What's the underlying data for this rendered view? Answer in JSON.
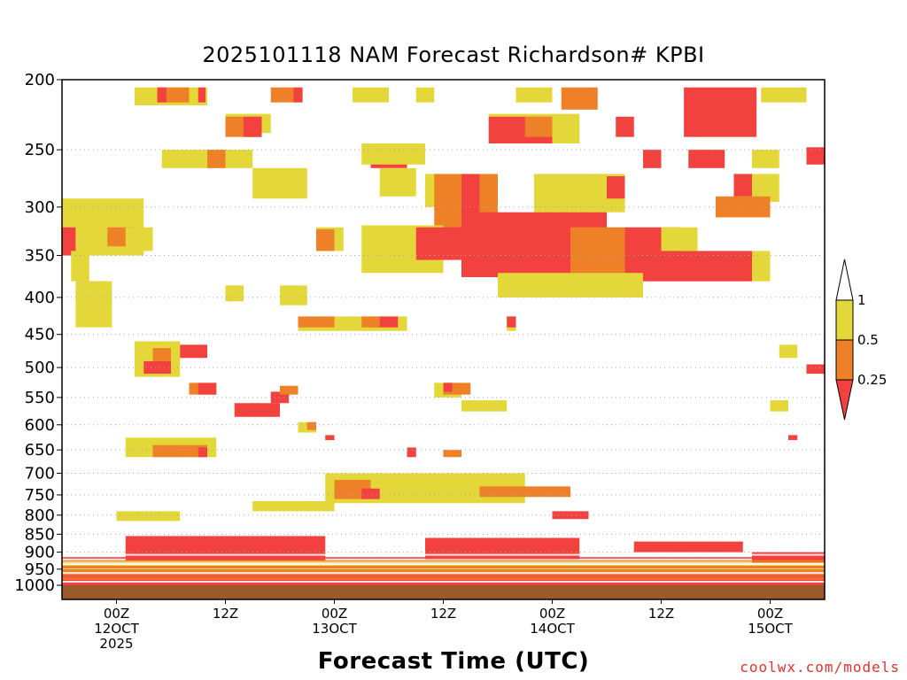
{
  "chart_data": {
    "type": "heatmap",
    "title": "2025101118 NAM Forecast Richardson# KPBI",
    "xlabel": "Forecast Time (UTC)",
    "ylabel": "",
    "y_scale": "log",
    "y_inverted": true,
    "y_ticks": [
      200,
      250,
      300,
      350,
      400,
      450,
      500,
      550,
      600,
      650,
      700,
      750,
      800,
      850,
      900,
      950,
      1000
    ],
    "x_ticks": [
      {
        "line1": "00Z",
        "line2": "12OCT",
        "line3": "2025"
      },
      {
        "line1": "12Z",
        "line2": "",
        "line3": ""
      },
      {
        "line1": "00Z",
        "line2": "13OCT",
        "line3": ""
      },
      {
        "line1": "12Z",
        "line2": "",
        "line3": ""
      },
      {
        "line1": "00Z",
        "line2": "14OCT",
        "line3": ""
      },
      {
        "line1": "12Z",
        "line2": "",
        "line3": ""
      },
      {
        "line1": "00Z",
        "line2": "15OCT",
        "line3": ""
      }
    ],
    "x_tick_hours": [
      6,
      18,
      30,
      42,
      54,
      66,
      78
    ],
    "x_range_hours": [
      0,
      84
    ],
    "grid": "dotted at pressure ticks",
    "colorbar": {
      "labels": [
        "1",
        "0.5",
        "0.25"
      ],
      "colors": {
        "above1": "#ffffff",
        "between_0.5_1": "#e3d73a",
        "between_0.25_0.5": "#ee8127",
        "below_0.25": "#f2423f"
      }
    },
    "ground_color": "#9a5a2c",
    "regions": [
      {
        "c": "Y",
        "h": [
          8,
          16
        ],
        "p": [
          205,
          217
        ]
      },
      {
        "c": "O",
        "h": [
          10.5,
          14
        ],
        "p": [
          205,
          215
        ]
      },
      {
        "c": "R",
        "h": [
          10.5,
          11.5
        ],
        "p": [
          205,
          215
        ]
      },
      {
        "c": "R",
        "h": [
          15,
          15.8
        ],
        "p": [
          205,
          215
        ]
      },
      {
        "c": "O",
        "h": [
          23,
          26
        ],
        "p": [
          205,
          215
        ]
      },
      {
        "c": "R",
        "h": [
          25.5,
          26.5
        ],
        "p": [
          205,
          215
        ]
      },
      {
        "c": "Y",
        "h": [
          32,
          36
        ],
        "p": [
          205,
          215
        ]
      },
      {
        "c": "Y",
        "h": [
          39,
          41
        ],
        "p": [
          205,
          215
        ]
      },
      {
        "c": "Y",
        "h": [
          50,
          54
        ],
        "p": [
          205,
          215
        ]
      },
      {
        "c": "O",
        "h": [
          55,
          59
        ],
        "p": [
          205,
          220
        ]
      },
      {
        "c": "R",
        "h": [
          68.5,
          76.5
        ],
        "p": [
          205,
          240
        ]
      },
      {
        "c": "Y",
        "h": [
          77,
          82
        ],
        "p": [
          205,
          215
        ]
      },
      {
        "c": "Y",
        "h": [
          18,
          23
        ],
        "p": [
          223,
          237
        ]
      },
      {
        "c": "O",
        "h": [
          18,
          22
        ],
        "p": [
          225,
          240
        ]
      },
      {
        "c": "R",
        "h": [
          20,
          22
        ],
        "p": [
          225,
          240
        ]
      },
      {
        "c": "Y",
        "h": [
          47,
          57
        ],
        "p": [
          223,
          245
        ]
      },
      {
        "c": "R",
        "h": [
          47,
          54
        ],
        "p": [
          225,
          245
        ]
      },
      {
        "c": "O",
        "h": [
          51,
          54
        ],
        "p": [
          225,
          240
        ]
      },
      {
        "c": "R",
        "h": [
          61,
          63
        ],
        "p": [
          225,
          240
        ]
      },
      {
        "c": "Y",
        "h": [
          11,
          21
        ],
        "p": [
          250,
          265
        ]
      },
      {
        "c": "O",
        "h": [
          16,
          18
        ],
        "p": [
          250,
          265
        ]
      },
      {
        "c": "R",
        "h": [
          34,
          38
        ],
        "p": [
          245,
          265
        ]
      },
      {
        "c": "Y",
        "h": [
          33,
          40
        ],
        "p": [
          245,
          262
        ]
      },
      {
        "c": "R",
        "h": [
          64,
          66
        ],
        "p": [
          250,
          265
        ]
      },
      {
        "c": "R",
        "h": [
          69,
          73
        ],
        "p": [
          250,
          265
        ]
      },
      {
        "c": "Y",
        "h": [
          76,
          79
        ],
        "p": [
          250,
          265
        ]
      },
      {
        "c": "R",
        "h": [
          82,
          84
        ],
        "p": [
          248,
          262
        ]
      },
      {
        "c": "Y",
        "h": [
          21,
          27
        ],
        "p": [
          265,
          292
        ]
      },
      {
        "c": "Y",
        "h": [
          35,
          39
        ],
        "p": [
          265,
          290
        ]
      },
      {
        "c": "Y",
        "h": [
          40,
          43
        ],
        "p": [
          270,
          300
        ]
      },
      {
        "c": "O",
        "h": [
          41,
          48
        ],
        "p": [
          270,
          345
        ]
      },
      {
        "c": "R",
        "h": [
          44,
          46
        ],
        "p": [
          270,
          345
        ]
      },
      {
        "c": "O",
        "h": [
          52,
          60
        ],
        "p": [
          270,
          290
        ]
      },
      {
        "c": "Y",
        "h": [
          52,
          62
        ],
        "p": [
          270,
          305
        ]
      },
      {
        "c": "R",
        "h": [
          60,
          62
        ],
        "p": [
          272,
          292
        ]
      },
      {
        "c": "Y",
        "h": [
          74,
          79
        ],
        "p": [
          270,
          295
        ]
      },
      {
        "c": "R",
        "h": [
          74,
          76
        ],
        "p": [
          270,
          290
        ]
      },
      {
        "c": "O",
        "h": [
          72,
          78
        ],
        "p": [
          290,
          310
        ]
      },
      {
        "c": "Y",
        "h": [
          0,
          9
        ],
        "p": [
          292,
          350
        ]
      },
      {
        "c": "O",
        "h": [
          5,
          8
        ],
        "p": [
          320,
          340
        ]
      },
      {
        "c": "R",
        "h": [
          0,
          1.5
        ],
        "p": [
          320,
          350
        ]
      },
      {
        "c": "Y",
        "h": [
          7,
          10
        ],
        "p": [
          320,
          345
        ]
      },
      {
        "c": "Y",
        "h": [
          28,
          31
        ],
        "p": [
          320,
          345
        ]
      },
      {
        "c": "O",
        "h": [
          28,
          30
        ],
        "p": [
          322,
          345
        ]
      },
      {
        "c": "Y",
        "h": [
          33,
          42
        ],
        "p": [
          318,
          370
        ]
      },
      {
        "c": "R",
        "h": [
          39,
          44
        ],
        "p": [
          320,
          355
        ]
      },
      {
        "c": "R",
        "h": [
          44,
          60
        ],
        "p": [
          305,
          375
        ]
      },
      {
        "c": "R",
        "h": [
          50,
          58
        ],
        "p": [
          320,
          380
        ]
      },
      {
        "c": "O",
        "h": [
          56,
          62
        ],
        "p": [
          320,
          380
        ]
      },
      {
        "c": "O",
        "h": [
          60,
          64
        ],
        "p": [
          340,
          380
        ]
      },
      {
        "c": "R",
        "h": [
          62,
          68
        ],
        "p": [
          320,
          370
        ]
      },
      {
        "c": "R",
        "h": [
          64,
          76
        ],
        "p": [
          345,
          380
        ]
      },
      {
        "c": "Y",
        "h": [
          66,
          70
        ],
        "p": [
          320,
          345
        ]
      },
      {
        "c": "Y",
        "h": [
          76,
          78
        ],
        "p": [
          345,
          380
        ]
      },
      {
        "c": "Y",
        "h": [
          48,
          64
        ],
        "p": [
          370,
          400
        ]
      },
      {
        "c": "Y",
        "h": [
          1,
          3
        ],
        "p": [
          345,
          380
        ]
      },
      {
        "c": "O",
        "h": [
          2,
          5
        ],
        "p": [
          380,
          420
        ]
      },
      {
        "c": "Y",
        "h": [
          1.5,
          5.5
        ],
        "p": [
          380,
          440
        ]
      },
      {
        "c": "Y",
        "h": [
          18,
          20
        ],
        "p": [
          385,
          405
        ]
      },
      {
        "c": "Y",
        "h": [
          24,
          27
        ],
        "p": [
          385,
          410
        ]
      },
      {
        "c": "Y",
        "h": [
          26,
          38
        ],
        "p": [
          425,
          445
        ]
      },
      {
        "c": "O",
        "h": [
          26,
          30
        ],
        "p": [
          425,
          440
        ]
      },
      {
        "c": "R",
        "h": [
          34,
          37
        ],
        "p": [
          425,
          440
        ]
      },
      {
        "c": "O",
        "h": [
          33,
          35
        ],
        "p": [
          425,
          440
        ]
      },
      {
        "c": "Y",
        "h": [
          49,
          50
        ],
        "p": [
          425,
          445
        ]
      },
      {
        "c": "R",
        "h": [
          49,
          50
        ],
        "p": [
          425,
          440
        ]
      },
      {
        "c": "Y",
        "h": [
          8,
          13
        ],
        "p": [
          460,
          515
        ]
      },
      {
        "c": "R",
        "h": [
          13,
          16
        ],
        "p": [
          465,
          485
        ]
      },
      {
        "c": "R",
        "h": [
          9,
          12
        ],
        "p": [
          490,
          510
        ]
      },
      {
        "c": "O",
        "h": [
          10,
          12
        ],
        "p": [
          470,
          490
        ]
      },
      {
        "c": "Y",
        "h": [
          79,
          81
        ],
        "p": [
          465,
          485
        ]
      },
      {
        "c": "R",
        "h": [
          82,
          84
        ],
        "p": [
          495,
          510
        ]
      },
      {
        "c": "O",
        "h": [
          14,
          17
        ],
        "p": [
          525,
          545
        ]
      },
      {
        "c": "R",
        "h": [
          15,
          17
        ],
        "p": [
          525,
          545
        ]
      },
      {
        "c": "R",
        "h": [
          19,
          24
        ],
        "p": [
          560,
          585
        ]
      },
      {
        "c": "R",
        "h": [
          23,
          25
        ],
        "p": [
          540,
          560
        ]
      },
      {
        "c": "O",
        "h": [
          24,
          26
        ],
        "p": [
          530,
          545
        ]
      },
      {
        "c": "Y",
        "h": [
          41,
          44
        ],
        "p": [
          525,
          550
        ]
      },
      {
        "c": "O",
        "h": [
          42,
          45
        ],
        "p": [
          525,
          545
        ]
      },
      {
        "c": "R",
        "h": [
          42,
          43
        ],
        "p": [
          525,
          540
        ]
      },
      {
        "c": "Y",
        "h": [
          44,
          49
        ],
        "p": [
          555,
          575
        ]
      },
      {
        "c": "Y",
        "h": [
          78,
          80
        ],
        "p": [
          555,
          575
        ]
      },
      {
        "c": "Y",
        "h": [
          26,
          28
        ],
        "p": [
          595,
          615
        ]
      },
      {
        "c": "O",
        "h": [
          27,
          28
        ],
        "p": [
          595,
          610
        ]
      },
      {
        "c": "R",
        "h": [
          29,
          30
        ],
        "p": [
          620,
          630
        ]
      },
      {
        "c": "Y",
        "h": [
          7,
          17
        ],
        "p": [
          625,
          665
        ]
      },
      {
        "c": "O",
        "h": [
          10,
          16
        ],
        "p": [
          640,
          665
        ]
      },
      {
        "c": "R",
        "h": [
          15,
          16
        ],
        "p": [
          645,
          665
        ]
      },
      {
        "c": "R",
        "h": [
          38,
          39
        ],
        "p": [
          645,
          665
        ]
      },
      {
        "c": "O",
        "h": [
          42,
          44
        ],
        "p": [
          650,
          665
        ]
      },
      {
        "c": "R",
        "h": [
          80,
          81
        ],
        "p": [
          620,
          630
        ]
      },
      {
        "c": "Y",
        "h": [
          29,
          51
        ],
        "p": [
          700,
          770
        ]
      },
      {
        "c": "O",
        "h": [
          30,
          34
        ],
        "p": [
          715,
          760
        ]
      },
      {
        "c": "R",
        "h": [
          33,
          35
        ],
        "p": [
          735,
          760
        ]
      },
      {
        "c": "O",
        "h": [
          46,
          56
        ],
        "p": [
          730,
          755
        ]
      },
      {
        "c": "Y",
        "h": [
          21,
          30
        ],
        "p": [
          765,
          790
        ]
      },
      {
        "c": "Y",
        "h": [
          6,
          13
        ],
        "p": [
          790,
          815
        ]
      },
      {
        "c": "R",
        "h": [
          54,
          58
        ],
        "p": [
          790,
          810
        ]
      }
    ],
    "near_surface_layers": [
      {
        "c": "R",
        "h": [
          0,
          84
        ],
        "p": [
          970,
          1010
        ]
      },
      {
        "c": "O",
        "h": [
          0,
          84
        ],
        "p": [
          950,
          975
        ]
      },
      {
        "c": "Y",
        "h": [
          0,
          84
        ],
        "p": [
          930,
          950
        ]
      },
      {
        "c": "R",
        "h": [
          7,
          29
        ],
        "p": [
          855,
          925
        ]
      },
      {
        "c": "R",
        "h": [
          40,
          57
        ],
        "p": [
          860,
          920
        ]
      },
      {
        "c": "R",
        "h": [
          63,
          75
        ],
        "p": [
          870,
          900
        ]
      },
      {
        "c": "R",
        "h": [
          76,
          84
        ],
        "p": [
          900,
          930
        ]
      }
    ]
  }
}
